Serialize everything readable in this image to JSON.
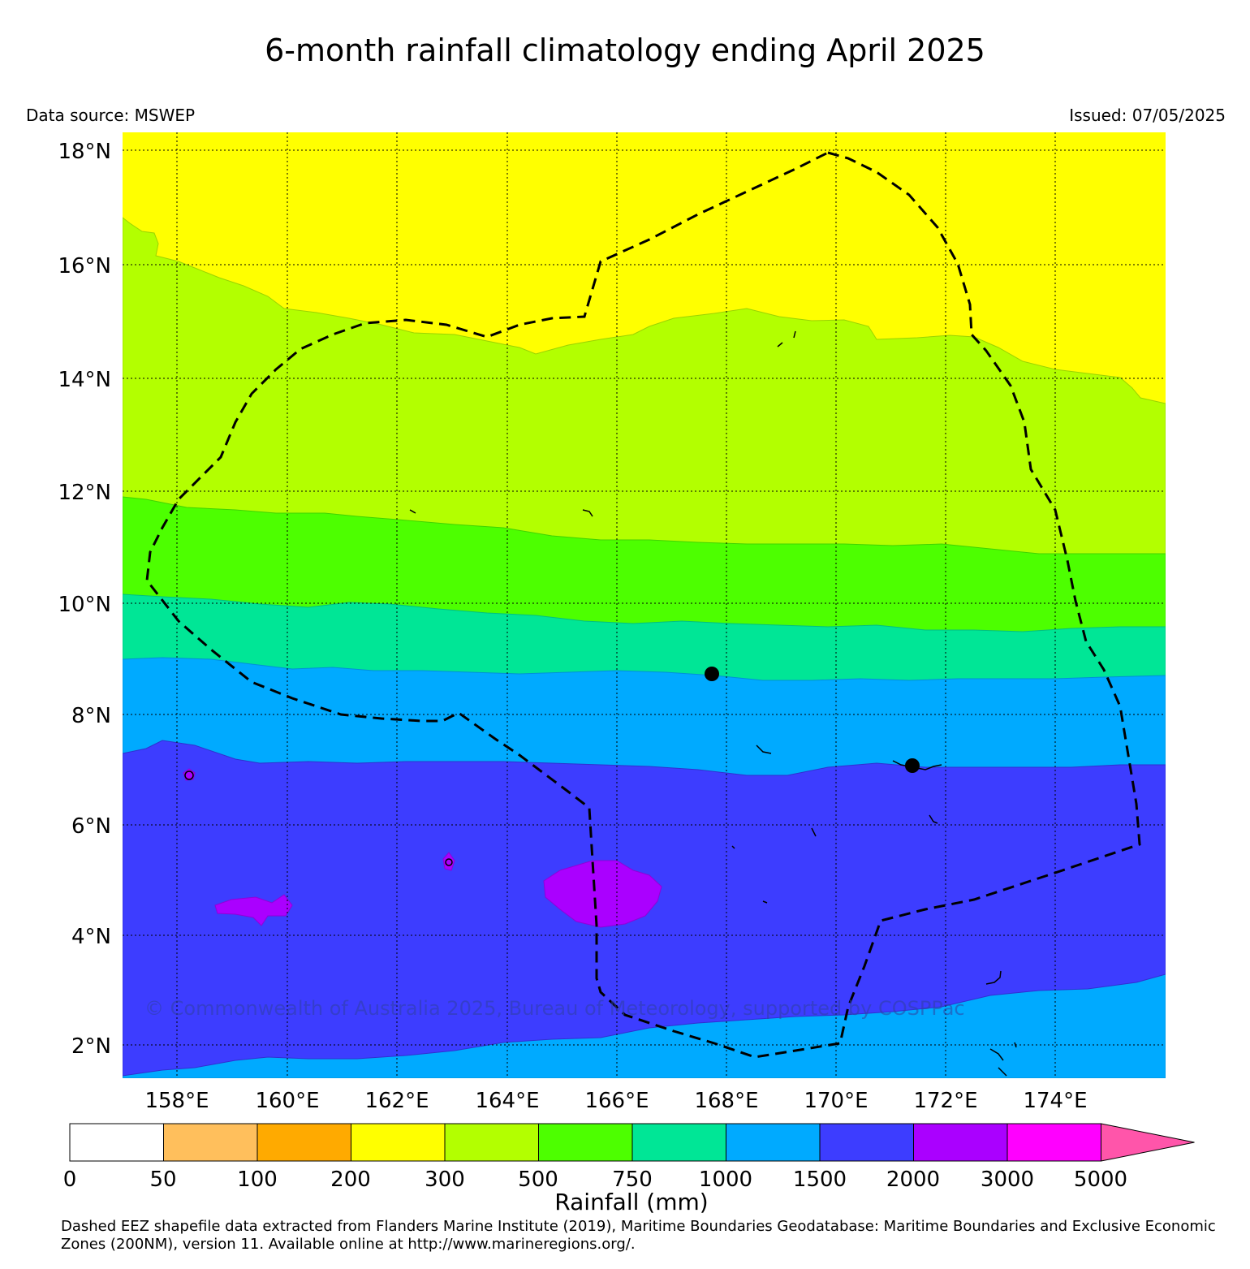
{
  "title": "6-month rainfall climatology ending April 2025",
  "data_source": "Data source: MSWEP",
  "issued": "Issued: 07/05/2025",
  "copyright": "© Commonwealth of Australia 2025, Bureau of Meteorology, supported by COSPPac",
  "footer": "Dashed EEZ shapefile data extracted from Flanders Marine Institute (2019), Maritime Boundaries Geodatabase: Maritime Boundaries and Exclusive Economic Zones (200NM), version 11. Available online at http://www.marineregions.org/.",
  "lat_labels": [
    "18°N",
    "16°N",
    "14°N",
    "12°N",
    "10°N",
    "8°N",
    "6°N",
    "4°N",
    "2°N"
  ],
  "lon_labels": [
    "158°E",
    "160°E",
    "162°E",
    "164°E",
    "166°E",
    "168°E",
    "170°E",
    "172°E",
    "174°E"
  ],
  "map_extent": {
    "lon_min": 157.0,
    "lon_max": 176.0,
    "lat_min": 1.4,
    "lat_max": 18.3
  },
  "colorbar": {
    "label": "Rainfall (mm)",
    "ticks": [
      "0",
      "50",
      "100",
      "200",
      "300",
      "500",
      "750",
      "1000",
      "1500",
      "2000",
      "3000",
      "5000"
    ],
    "colors": [
      "#ffffff",
      "#ffbf5c",
      "#ffaa00",
      "#ffff00",
      "#b3ff00",
      "#4dff00",
      "#00e696",
      "#00aaff",
      "#3d3dff",
      "#aa00ff",
      "#ff00ff",
      "#ff55aa"
    ]
  },
  "markers": [
    {
      "lat": 8.73,
      "lon": 167.73
    },
    {
      "lat": 7.09,
      "lon": 171.38
    }
  ]
}
